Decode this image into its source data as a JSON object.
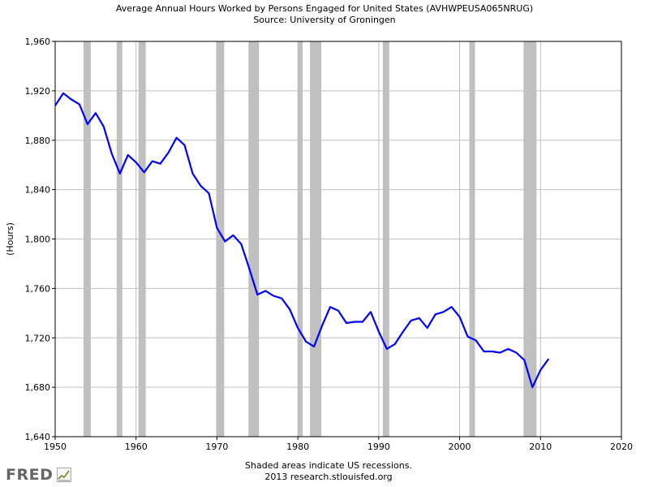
{
  "title": "Average Annual Hours Worked by Persons Engaged for United States (AVHWPEUSA065NRUG)",
  "subtitle": "Source: University of Groningen",
  "footer": {
    "line1": "Shaded areas indicate US recessions.",
    "line2": "2013 research.stlouisfed.org"
  },
  "logo": {
    "text": "FRED",
    "icon": "chart-line-icon"
  },
  "colors": {
    "line": "#0000ff",
    "recession": "#c0c0c0",
    "grid": "#c0c0c0",
    "axis": "#000000"
  },
  "chart_data": {
    "type": "line",
    "title": "Average Annual Hours Worked by Persons Engaged for United States (AVHWPEUSA065NRUG)",
    "subtitle": "Source: University of Groningen",
    "xlabel": "",
    "ylabel": "(Hours)",
    "xlim": [
      1950,
      2020
    ],
    "ylim": [
      1640,
      1960
    ],
    "xticks": [
      1950,
      1960,
      1970,
      1980,
      1990,
      2000,
      2010,
      2020
    ],
    "yticks": [
      1640,
      1680,
      1720,
      1760,
      1800,
      1840,
      1880,
      1920,
      1960
    ],
    "ytick_labels": [
      "1,640",
      "1,680",
      "1,720",
      "1,760",
      "1,800",
      "1,840",
      "1,880",
      "1,920",
      "1,960"
    ],
    "grid": true,
    "recessions": [
      [
        1953.5,
        1954.4
      ],
      [
        1957.6,
        1958.3
      ],
      [
        1960.3,
        1961.2
      ],
      [
        1969.9,
        1970.9
      ],
      [
        1973.9,
        1975.2
      ],
      [
        1980.0,
        1980.6
      ],
      [
        1981.5,
        1982.9
      ],
      [
        1990.5,
        1991.3
      ],
      [
        2001.2,
        2001.9
      ],
      [
        2007.9,
        2009.5
      ]
    ],
    "series": [
      {
        "x": [
          1950,
          1951,
          1952,
          1953,
          1954,
          1955,
          1956,
          1957,
          1958,
          1959,
          1960,
          1961,
          1962,
          1963,
          1964,
          1965,
          1966,
          1967,
          1968,
          1969,
          1970,
          1971,
          1972,
          1973,
          1974,
          1975,
          1976,
          1977,
          1978,
          1979,
          1980,
          1981,
          1982,
          1983,
          1984,
          1985,
          1986,
          1987,
          1988,
          1989,
          1990,
          1991,
          1992,
          1993,
          1994,
          1995,
          1996,
          1997,
          1998,
          1999,
          2000,
          2001,
          2002,
          2003,
          2004,
          2005,
          2006,
          2007,
          2008,
          2009,
          2010,
          2011
        ],
        "y": [
          1908,
          1918,
          1913,
          1909,
          1893,
          1902,
          1891,
          1869,
          1853,
          1868,
          1862,
          1854,
          1863,
          1861,
          1870,
          1882,
          1876,
          1853,
          1843,
          1837,
          1809,
          1798,
          1803,
          1796,
          1776,
          1755,
          1758,
          1754,
          1752,
          1743,
          1728,
          1717,
          1713,
          1730,
          1745,
          1742,
          1732,
          1733,
          1733,
          1741,
          1725,
          1711,
          1715,
          1725,
          1734,
          1736,
          1728,
          1739,
          1741,
          1745,
          1737,
          1721,
          1718,
          1709,
          1709,
          1708,
          1711,
          1708,
          1702,
          1680,
          1694,
          1703
        ]
      }
    ]
  }
}
